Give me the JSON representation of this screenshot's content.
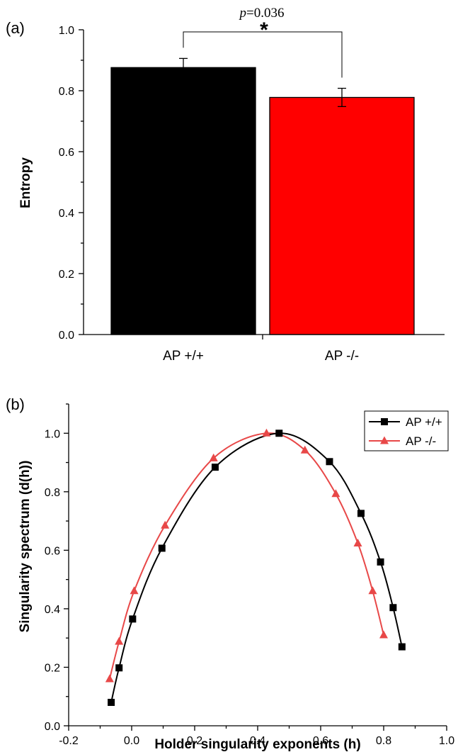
{
  "chart_data": [
    {
      "panel": "(a)",
      "type": "bar",
      "categories": [
        "AP +/+",
        "AP -/-"
      ],
      "values": [
        0.876,
        0.778
      ],
      "errors": [
        0.03,
        0.03
      ],
      "colors": [
        "#000000",
        "#ff0000"
      ],
      "ylabel": "Entropy",
      "xlabel": "",
      "ylim": [
        0,
        1.0
      ],
      "yticks": [
        "0.0",
        "0.2",
        "0.4",
        "0.6",
        "0.8",
        "1.0"
      ],
      "significance": {
        "p_label": "p",
        "p_value": "=0.036",
        "star": "*"
      }
    },
    {
      "panel": "(b)",
      "type": "line",
      "xlabel": "Holder singularity exponents (h)",
      "ylabel": "Singularity spectrum (d(h))",
      "xlim": [
        -0.2,
        1.0
      ],
      "ylim": [
        0.0,
        1.1
      ],
      "xticks": [
        "-0.2",
        "0.0",
        "0.2",
        "0.4",
        "0.6",
        "0.8",
        "1.0"
      ],
      "yticks": [
        "0.0",
        "0.2",
        "0.4",
        "0.6",
        "0.8",
        "1.0"
      ],
      "legend_position": "top-right",
      "series": [
        {
          "name": "AP +/+",
          "color": "#000000",
          "marker": "square",
          "x": [
            -0.065,
            -0.04,
            0.003,
            0.096,
            0.265,
            0.468,
            0.628,
            0.728,
            0.79,
            0.83,
            0.858
          ],
          "y": [
            0.08,
            0.198,
            0.365,
            0.607,
            0.884,
            1.0,
            0.903,
            0.726,
            0.56,
            0.404,
            0.27
          ]
        },
        {
          "name": "AP -/-",
          "color": "#e84848",
          "marker": "triangle",
          "x": [
            -0.07,
            -0.04,
            0.008,
            0.106,
            0.26,
            0.428,
            0.55,
            0.648,
            0.718,
            0.765,
            0.8
          ],
          "y": [
            0.16,
            0.288,
            0.461,
            0.685,
            0.915,
            1.0,
            0.942,
            0.793,
            0.624,
            0.461,
            0.31
          ]
        }
      ]
    }
  ]
}
